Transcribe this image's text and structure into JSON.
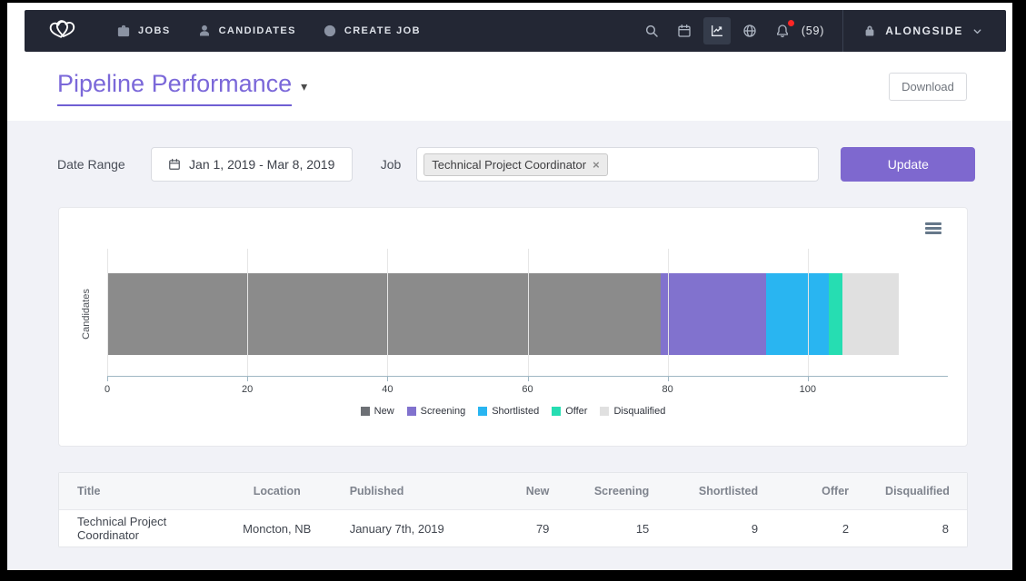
{
  "navbar": {
    "items": [
      {
        "label": "JOBS",
        "icon": "briefcase"
      },
      {
        "label": "CANDIDATES",
        "icon": "user"
      },
      {
        "label": "CREATE JOB",
        "icon": "plus-circle"
      }
    ],
    "toolbar_icons": [
      "search",
      "calendar",
      "chart-line",
      "globe",
      "bell"
    ],
    "active_toolbar_icon": "chart-line",
    "notification_count": "(59)",
    "account_label": "ALONGSIDE",
    "colors": {
      "background": "#232734",
      "notification_dot": "#ff2626"
    }
  },
  "header": {
    "title": "Pipeline Performance",
    "dropdown_caret": "▾",
    "download_label": "Download",
    "accent_color": "#7b68d9"
  },
  "filters": {
    "date_range_label": "Date Range",
    "date_range_value": "Jan 1, 2019 - Mar 8, 2019",
    "job_label": "Job",
    "job_selected_tag": "Technical Project Coordinator",
    "job_tag_remove": "×",
    "update_label": "Update",
    "update_color": "#7e68cf"
  },
  "chart_data": {
    "type": "bar",
    "orientation": "horizontal",
    "stacked": true,
    "categories": [
      "Candidates"
    ],
    "series": [
      {
        "name": "New",
        "value": 79,
        "color": "#8b8b8b",
        "legend_color": "#6d7075"
      },
      {
        "name": "Screening",
        "value": 15,
        "color": "#8172ce"
      },
      {
        "name": "Shortlisted",
        "value": 9,
        "color": "#29b5f1"
      },
      {
        "name": "Offer",
        "value": 2,
        "color": "#26ddb2"
      },
      {
        "name": "Disqualified",
        "value": 8,
        "color": "#e0e0e0"
      }
    ],
    "ylabel": "Candidates",
    "xlabel": "",
    "xlim": [
      0,
      120
    ],
    "xticks": [
      0,
      20,
      40,
      60,
      80,
      100
    ],
    "grid": true,
    "legend_position": "bottom-center"
  },
  "table": {
    "columns": [
      {
        "label": "Title",
        "align": "left"
      },
      {
        "label": "Location",
        "align": "center"
      },
      {
        "label": "Published",
        "align": "left"
      },
      {
        "label": "New",
        "align": "right"
      },
      {
        "label": "Screening",
        "align": "right"
      },
      {
        "label": "Shortlisted",
        "align": "right"
      },
      {
        "label": "Offer",
        "align": "right"
      },
      {
        "label": "Disqualified",
        "align": "right"
      }
    ],
    "rows": [
      [
        "Technical Project Coordinator",
        "Moncton, NB",
        "January 7th, 2019",
        "79",
        "15",
        "9",
        "2",
        "8"
      ]
    ]
  }
}
